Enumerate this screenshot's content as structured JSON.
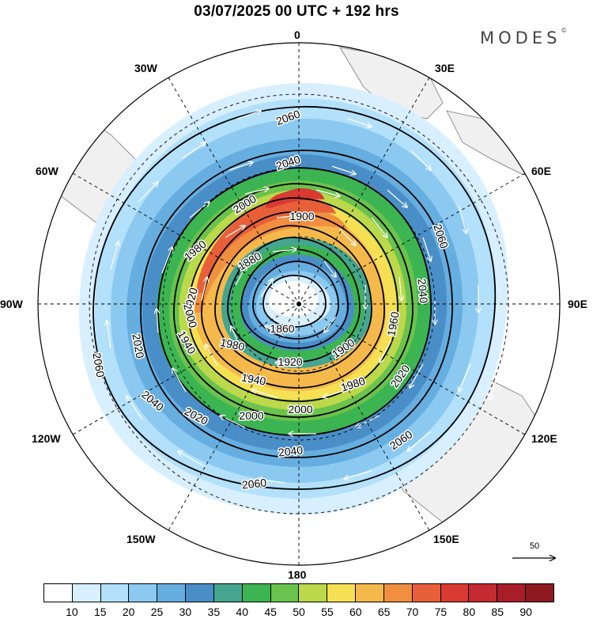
{
  "title": "03/07/2025  00 UTC  + 192 hrs",
  "brand": {
    "name": "MODES",
    "mark": "©"
  },
  "longitude_labels": [
    {
      "id": "0",
      "text": "0"
    },
    {
      "id": "30e",
      "text": "30E"
    },
    {
      "id": "60e",
      "text": "60E"
    },
    {
      "id": "90e",
      "text": "90E"
    },
    {
      "id": "120e",
      "text": "120E"
    },
    {
      "id": "150e",
      "text": "150E"
    },
    {
      "id": "180",
      "text": "180"
    },
    {
      "id": "150w",
      "text": "150W"
    },
    {
      "id": "120w",
      "text": "120W"
    },
    {
      "id": "90w",
      "text": "90W"
    },
    {
      "id": "60w",
      "text": "60W"
    },
    {
      "id": "30w",
      "text": "30W"
    }
  ],
  "contour_labels": [
    "2060",
    "2040",
    "2000",
    "1980",
    "1900",
    "1880",
    "1920",
    "1860",
    "1980",
    "1900",
    "1920",
    "1940",
    "1980",
    "2000",
    "2020",
    "2040",
    "2060",
    "2060",
    "2040",
    "1960",
    "2060",
    "2020",
    "1940",
    "2040",
    "2020",
    "2000",
    "2000",
    "2060"
  ],
  "reference_vector": {
    "label": "50"
  },
  "colorbar": {
    "colors": [
      "#ffffff",
      "#d7efff",
      "#b3e0fb",
      "#8cc9f0",
      "#66aee0",
      "#4a8ec8",
      "#45a58f",
      "#3cb452",
      "#6ac34c",
      "#bcd84b",
      "#f5e053",
      "#f5b94b",
      "#f08f3f",
      "#e8603a",
      "#d93a32",
      "#c42a30",
      "#a81e28",
      "#8c1a20"
    ],
    "labels": [
      "10",
      "15",
      "20",
      "25",
      "30",
      "35",
      "40",
      "45",
      "50",
      "55",
      "60",
      "65",
      "70",
      "75",
      "80",
      "85",
      "90"
    ]
  }
}
